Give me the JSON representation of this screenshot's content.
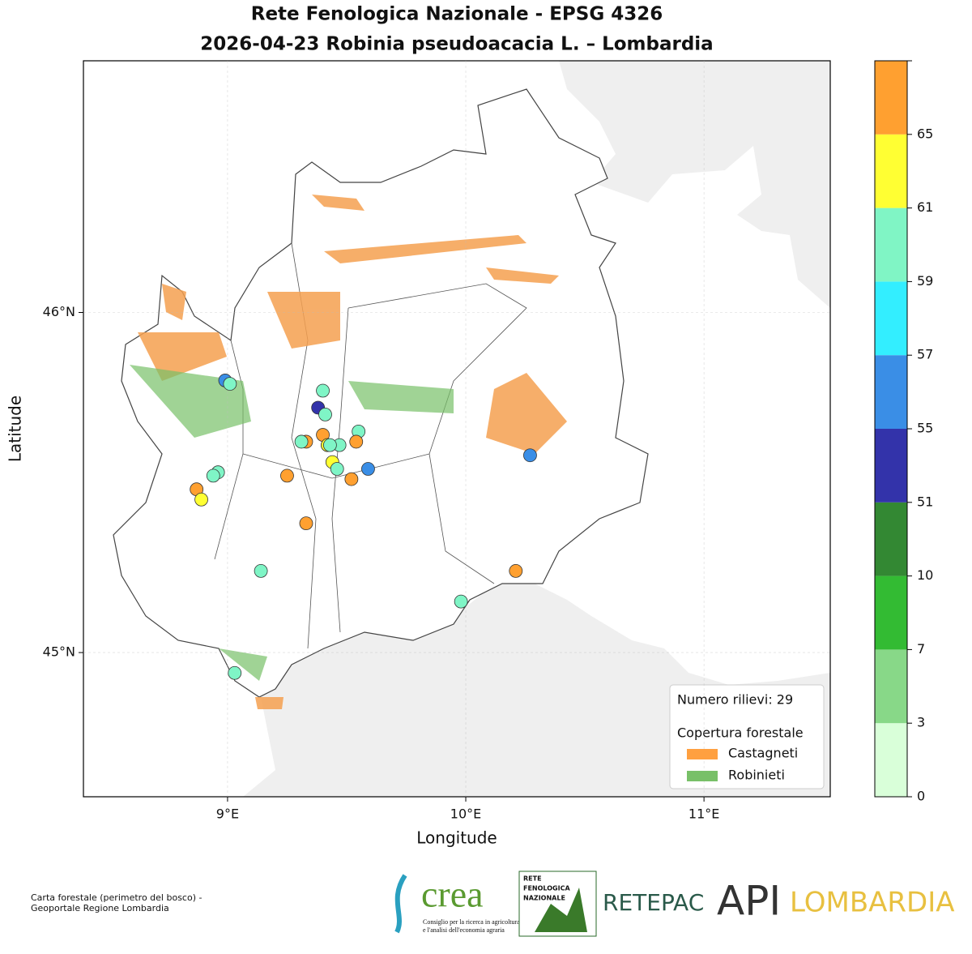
{
  "chart_data": {
    "type": "scatter",
    "title": "Rete Fenologica Nazionale - EPSG 4326",
    "subtitle": "2026-04-23 Robinia pseudoacacia L. – Lombardia",
    "x_label": "Longitude",
    "y_label": "Latitude",
    "xlim": [
      8.395,
      11.53
    ],
    "ylim": [
      44.576,
      46.74
    ],
    "xticks": [
      {
        "value": 9,
        "label": "9°E"
      },
      {
        "value": 10,
        "label": "10°E"
      },
      {
        "value": 11,
        "label": "11°E"
      }
    ],
    "yticks": [
      {
        "value": 45,
        "label": "45°N"
      },
      {
        "value": 46,
        "label": "46°N"
      }
    ],
    "grid": true,
    "x": [
      8.99,
      9.01,
      9.4,
      9.38,
      9.41,
      9.55,
      9.4,
      9.33,
      9.31,
      9.54,
      9.42,
      9.47,
      9.42,
      9.44,
      9.46,
      9.59,
      9.25,
      9.52,
      8.96,
      8.94,
      8.87,
      8.89,
      9.33,
      9.14,
      9.98,
      10.21,
      10.27,
      9.03,
      9.43
    ],
    "values": [
      45.8,
      45.79,
      45.77,
      45.72,
      45.7,
      45.65,
      45.64,
      45.62,
      45.62,
      45.62,
      45.61,
      45.61,
      45.61,
      45.56,
      45.54,
      45.54,
      45.52,
      45.51,
      45.53,
      45.52,
      45.48,
      45.45,
      45.38,
      45.24,
      45.15,
      45.24,
      45.58,
      44.94,
      45.61
    ],
    "colors": [
      "#3a8ee6",
      "#7ff5c6",
      "#7ff5c6",
      "#3333aa",
      "#7ff5c6",
      "#7ff5c6",
      "#ffa030",
      "#ffa030",
      "#7ff5c6",
      "#ffa030",
      "#7ff5c6",
      "#7ff5c6",
      "#ffff33",
      "#ffff33",
      "#7ff5c6",
      "#3a8ee6",
      "#ffa030",
      "#ffa030",
      "#7ff5c6",
      "#7ff5c6",
      "#ffa030",
      "#ffff33",
      "#ffa030",
      "#7ff5c6",
      "#7ff5c6",
      "#ffa030",
      "#3a8ee6",
      "#7ff5c6",
      "#7ff5c6"
    ],
    "count_label": "Numero rilievi: 29",
    "legend_title": "Copertura forestale",
    "legend": [
      {
        "name": "Castagneti",
        "color": "#ffa040"
      },
      {
        "name": "Robinieti",
        "color": "#78c068"
      }
    ],
    "colorbar": {
      "ticks": [
        0,
        3,
        7,
        10,
        51,
        55,
        57,
        59,
        61,
        65
      ],
      "colors": [
        "#d9ffd9",
        "#88d888",
        "#33bb33",
        "#338833",
        "#3333aa",
        "#3a8ee6",
        "#33eeff",
        "#80f5c5",
        "#ffff33",
        "#ffa030"
      ]
    }
  },
  "footer": {
    "source": [
      "Carta forestale (perimetro del bosco) -",
      "Geoportale Regione Lombardia"
    ],
    "logos": {
      "crea": "crea",
      "crea_caption": [
        "Consiglio per la ricerca in agricoltura",
        "e l'analisi dell'economia agraria"
      ],
      "rfn": [
        "RETE",
        "FENOLOGICA",
        "NAZIONALE"
      ],
      "retepac": "RETEPAC",
      "api": "API",
      "lombardia": "LOMBARDIA"
    }
  }
}
